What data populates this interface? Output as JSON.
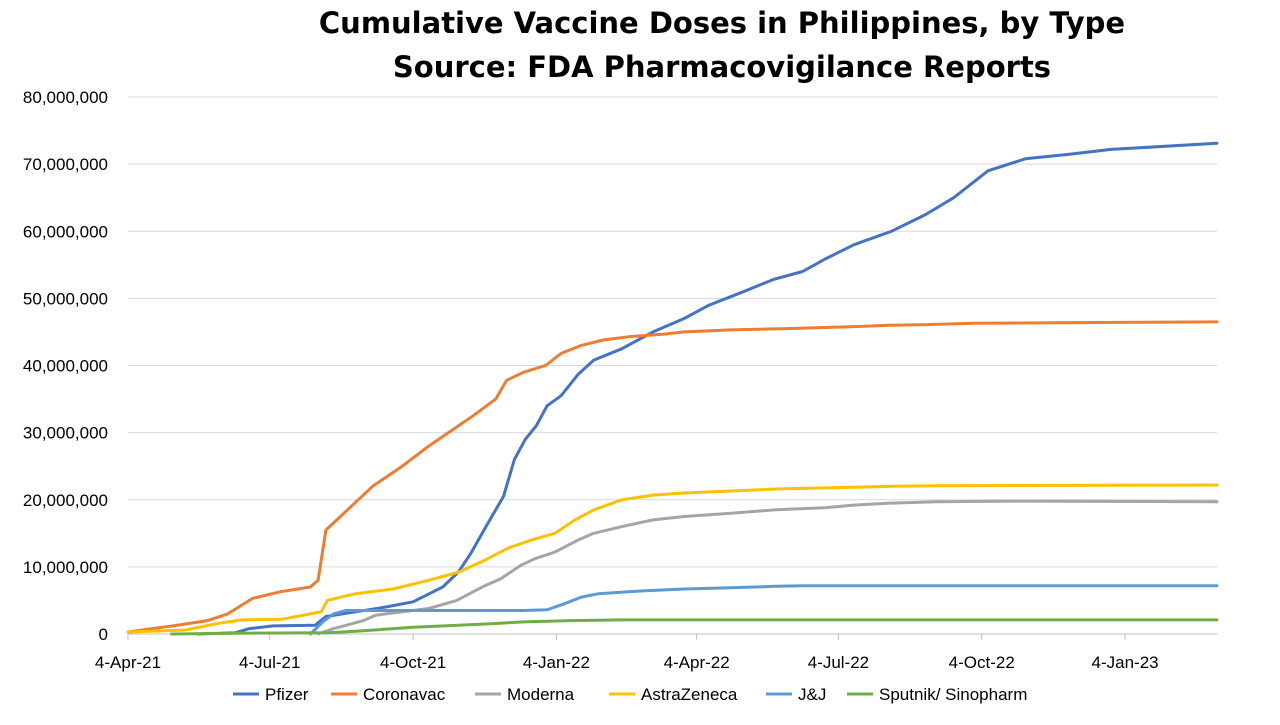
{
  "chart_data": {
    "type": "line",
    "title": "Cumulative Vaccine Doses in Philippines, by Type",
    "subtitle": "Source: FDA Pharmacovigilance Reports",
    "xlabel": "",
    "ylabel": "",
    "x_axis_type": "date",
    "x_range": [
      "2021-04-04",
      "2023-03-04"
    ],
    "x_tick_dates": [
      "2021-04-04",
      "2021-07-04",
      "2021-10-04",
      "2022-01-04",
      "2022-04-04",
      "2022-07-04",
      "2022-10-04",
      "2023-01-04"
    ],
    "x_tick_labels": [
      "4-Apr-21",
      "4-Jul-21",
      "4-Oct-21",
      "4-Jan-22",
      "4-Apr-22",
      "4-Jul-22",
      "4-Oct-22",
      "4-Jan-23"
    ],
    "ylim": [
      0,
      80000000
    ],
    "y_ticks": [
      0,
      10000000,
      20000000,
      30000000,
      40000000,
      50000000,
      60000000,
      70000000,
      80000000
    ],
    "y_tick_labels": [
      "0",
      "10,000,000",
      "20,000,000",
      "30,000,000",
      "40,000,000",
      "50,000,000",
      "60,000,000",
      "70,000,000",
      "80,000,000"
    ],
    "grid": "horizontal",
    "legend_position": "bottom",
    "series": [
      {
        "name": "Pfizer",
        "color": "#4472C4",
        "points": [
          [
            "2021-05-19",
            0
          ],
          [
            "2021-06-12",
            200000
          ],
          [
            "2021-06-21",
            800000
          ],
          [
            "2021-07-06",
            1200000
          ],
          [
            "2021-08-02",
            1300000
          ],
          [
            "2021-08-09",
            2600000
          ],
          [
            "2021-08-28",
            3300000
          ],
          [
            "2021-09-16",
            4000000
          ],
          [
            "2021-10-04",
            4800000
          ],
          [
            "2021-10-23",
            7000000
          ],
          [
            "2021-11-02",
            9200000
          ],
          [
            "2021-11-10",
            12000000
          ],
          [
            "2021-11-21",
            16500000
          ],
          [
            "2021-12-01",
            20500000
          ],
          [
            "2021-12-08",
            26000000
          ],
          [
            "2021-12-15",
            29000000
          ],
          [
            "2021-12-22",
            31000000
          ],
          [
            "2021-12-29",
            34000000
          ],
          [
            "2022-01-07",
            35500000
          ],
          [
            "2022-01-18",
            38700000
          ],
          [
            "2022-01-28",
            40800000
          ],
          [
            "2022-02-15",
            42500000
          ],
          [
            "2022-03-07",
            45000000
          ],
          [
            "2022-03-27",
            47000000
          ],
          [
            "2022-04-12",
            49000000
          ],
          [
            "2022-05-04",
            51000000
          ],
          [
            "2022-05-23",
            52800000
          ],
          [
            "2022-06-11",
            54000000
          ],
          [
            "2022-06-25",
            55800000
          ],
          [
            "2022-07-14",
            58000000
          ],
          [
            "2022-08-07",
            60000000
          ],
          [
            "2022-08-29",
            62500000
          ],
          [
            "2022-09-16",
            65000000
          ],
          [
            "2022-10-08",
            69000000
          ],
          [
            "2022-11-01",
            70800000
          ],
          [
            "2022-11-30",
            71500000
          ],
          [
            "2022-12-26",
            72200000
          ],
          [
            "2023-03-04",
            73100000
          ]
        ]
      },
      {
        "name": "Coronavac",
        "color": "#ED7D31",
        "points": [
          [
            "2021-04-04",
            300000
          ],
          [
            "2021-04-16",
            700000
          ],
          [
            "2021-05-03",
            1200000
          ],
          [
            "2021-05-25",
            2000000
          ],
          [
            "2021-06-07",
            3000000
          ],
          [
            "2021-06-23",
            5300000
          ],
          [
            "2021-07-11",
            6300000
          ],
          [
            "2021-07-30",
            7000000
          ],
          [
            "2021-08-04",
            8000000
          ],
          [
            "2021-08-09",
            15500000
          ],
          [
            "2021-08-16",
            17000000
          ],
          [
            "2021-09-08",
            22000000
          ],
          [
            "2021-09-27",
            25000000
          ],
          [
            "2021-10-14",
            28000000
          ],
          [
            "2021-11-02",
            31000000
          ],
          [
            "2021-11-12",
            32600000
          ],
          [
            "2021-11-26",
            35000000
          ],
          [
            "2021-12-03",
            37800000
          ],
          [
            "2021-12-14",
            39000000
          ],
          [
            "2021-12-28",
            40000000
          ],
          [
            "2022-01-07",
            41800000
          ],
          [
            "2022-01-20",
            43000000
          ],
          [
            "2022-02-03",
            43800000
          ],
          [
            "2022-02-20",
            44300000
          ],
          [
            "2022-03-15",
            44700000
          ],
          [
            "2022-03-27",
            45000000
          ],
          [
            "2022-04-26",
            45300000
          ],
          [
            "2022-06-01",
            45500000
          ],
          [
            "2022-07-14",
            45800000
          ],
          [
            "2022-08-07",
            46000000
          ],
          [
            "2022-08-29",
            46100000
          ],
          [
            "2022-09-29",
            46300000
          ],
          [
            "2022-12-15",
            46400000
          ],
          [
            "2023-03-04",
            46500000
          ]
        ]
      },
      {
        "name": "Moderna",
        "color": "#A5A5A5",
        "points": [
          [
            "2021-08-04",
            0
          ],
          [
            "2021-08-14",
            800000
          ],
          [
            "2021-08-22",
            1300000
          ],
          [
            "2021-09-02",
            2000000
          ],
          [
            "2021-09-10",
            2800000
          ],
          [
            "2021-10-14",
            3800000
          ],
          [
            "2021-11-01",
            5000000
          ],
          [
            "2021-11-19",
            7200000
          ],
          [
            "2021-11-29",
            8200000
          ],
          [
            "2021-12-12",
            10200000
          ],
          [
            "2021-12-21",
            11200000
          ],
          [
            "2022-01-03",
            12200000
          ],
          [
            "2022-01-18",
            14000000
          ],
          [
            "2022-01-28",
            15000000
          ],
          [
            "2022-02-15",
            16000000
          ],
          [
            "2022-03-07",
            17000000
          ],
          [
            "2022-03-27",
            17500000
          ],
          [
            "2022-04-26",
            18000000
          ],
          [
            "2022-05-25",
            18500000
          ],
          [
            "2022-06-25",
            18800000
          ],
          [
            "2022-07-14",
            19200000
          ],
          [
            "2022-08-07",
            19500000
          ],
          [
            "2022-09-05",
            19700000
          ],
          [
            "2022-11-01",
            19800000
          ],
          [
            "2023-03-04",
            19700000
          ]
        ]
      },
      {
        "name": "AstraZeneca",
        "color": "#FFC000",
        "points": [
          [
            "2021-04-04",
            300000
          ],
          [
            "2021-05-11",
            600000
          ],
          [
            "2021-06-01",
            1600000
          ],
          [
            "2021-06-16",
            2100000
          ],
          [
            "2021-07-12",
            2200000
          ],
          [
            "2021-07-30",
            3000000
          ],
          [
            "2021-08-06",
            3300000
          ],
          [
            "2021-08-10",
            5000000
          ],
          [
            "2021-08-28",
            6000000
          ],
          [
            "2021-09-21",
            6700000
          ],
          [
            "2021-10-14",
            8000000
          ],
          [
            "2021-11-02",
            9200000
          ],
          [
            "2021-11-19",
            11000000
          ],
          [
            "2021-12-04",
            12800000
          ],
          [
            "2021-12-19",
            14000000
          ],
          [
            "2022-01-03",
            15000000
          ],
          [
            "2022-01-16",
            17000000
          ],
          [
            "2022-01-28",
            18500000
          ],
          [
            "2022-02-15",
            20000000
          ],
          [
            "2022-03-07",
            20700000
          ],
          [
            "2022-03-27",
            21000000
          ],
          [
            "2022-04-26",
            21300000
          ],
          [
            "2022-05-25",
            21600000
          ],
          [
            "2022-06-30",
            21800000
          ],
          [
            "2022-08-07",
            22000000
          ],
          [
            "2022-09-05",
            22100000
          ],
          [
            "2023-03-04",
            22200000
          ]
        ]
      },
      {
        "name": "J&J",
        "color": "#5B9BD5",
        "points": [
          [
            "2021-07-30",
            0
          ],
          [
            "2021-08-08",
            2000000
          ],
          [
            "2021-08-14",
            3000000
          ],
          [
            "2021-08-22",
            3500000
          ],
          [
            "2021-12-14",
            3500000
          ],
          [
            "2021-12-29",
            3600000
          ],
          [
            "2022-01-09",
            4500000
          ],
          [
            "2022-01-20",
            5500000
          ],
          [
            "2022-01-31",
            6000000
          ],
          [
            "2022-02-27",
            6400000
          ],
          [
            "2022-03-27",
            6700000
          ],
          [
            "2022-04-26",
            6900000
          ],
          [
            "2022-05-25",
            7100000
          ],
          [
            "2022-06-11",
            7200000
          ],
          [
            "2023-03-04",
            7200000
          ]
        ]
      },
      {
        "name": "Sputnik/ Sinopharm",
        "color": "#70AD47",
        "points": [
          [
            "2021-05-02",
            0
          ],
          [
            "2021-06-12",
            100000
          ],
          [
            "2021-08-11",
            200000
          ],
          [
            "2021-08-28",
            400000
          ],
          [
            "2021-10-04",
            1000000
          ],
          [
            "2021-10-24",
            1200000
          ],
          [
            "2021-11-21",
            1500000
          ],
          [
            "2021-12-14",
            1800000
          ],
          [
            "2022-01-13",
            2000000
          ],
          [
            "2022-02-15",
            2100000
          ],
          [
            "2023-03-04",
            2100000
          ]
        ]
      }
    ]
  }
}
